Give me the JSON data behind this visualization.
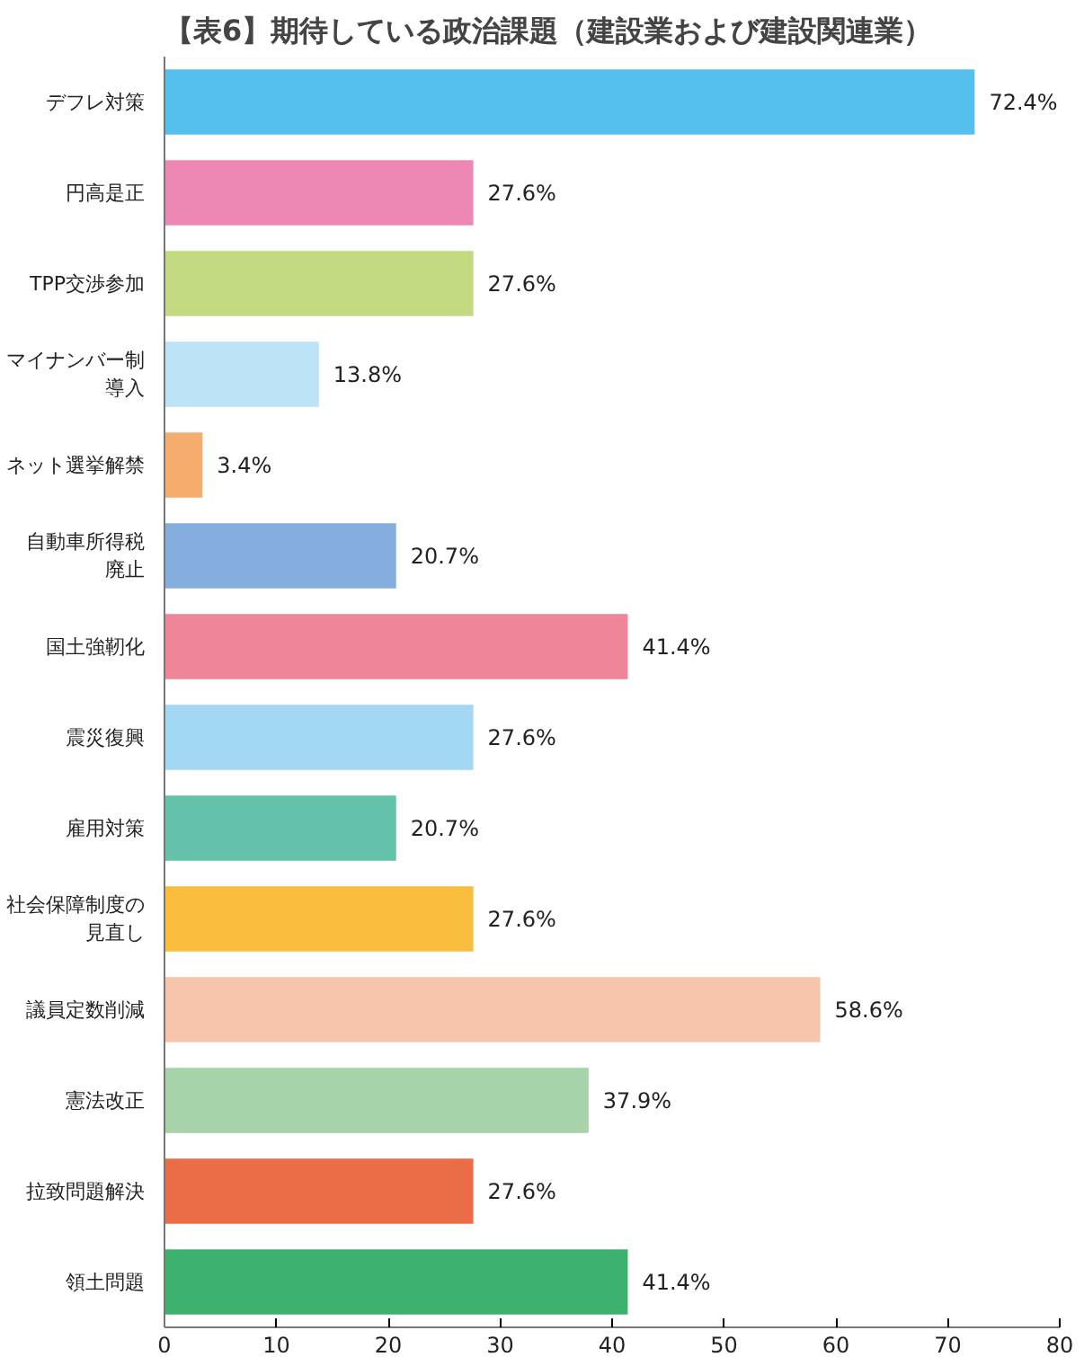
{
  "chart_data": {
    "type": "bar",
    "orientation": "horizontal",
    "title": "【表6】期待している政治課題（建設業および建設関連業）",
    "categories": [
      "デフレ対策",
      "円高是正",
      "TPP交渉参加",
      "マイナンバー制導入",
      "ネット選挙解禁",
      "自動車所得税廃止",
      "国土強靭化",
      "震災復興",
      "雇用対策",
      "社会保障制度の見直し",
      "議員定数削減",
      "憲法改正",
      "拉致問題解決",
      "領土問題"
    ],
    "values": [
      72.4,
      27.6,
      27.6,
      13.8,
      3.4,
      20.7,
      41.4,
      27.6,
      20.7,
      27.6,
      58.6,
      37.9,
      27.6,
      41.4
    ],
    "colors": [
      "#55c0ee",
      "#ed88b4",
      "#c4da80",
      "#bde3f7",
      "#f5ac6c",
      "#85aede",
      "#ee8599",
      "#a2d8f4",
      "#64c1aa",
      "#f9be3e",
      "#f6c5ab",
      "#a6d3a9",
      "#ea6d47",
      "#3db26f"
    ],
    "value_labels": [
      "72.4%",
      "27.6%",
      "27.6%",
      "13.8%",
      "3.4%",
      "20.7%",
      "41.4%",
      "27.6%",
      "20.7%",
      "27.6%",
      "58.6%",
      "37.9%",
      "27.6%",
      "41.4%"
    ],
    "xlim": [
      0,
      80
    ],
    "xticks": [
      0,
      10,
      20,
      30,
      40,
      50,
      60,
      70,
      80
    ],
    "grid": false
  }
}
